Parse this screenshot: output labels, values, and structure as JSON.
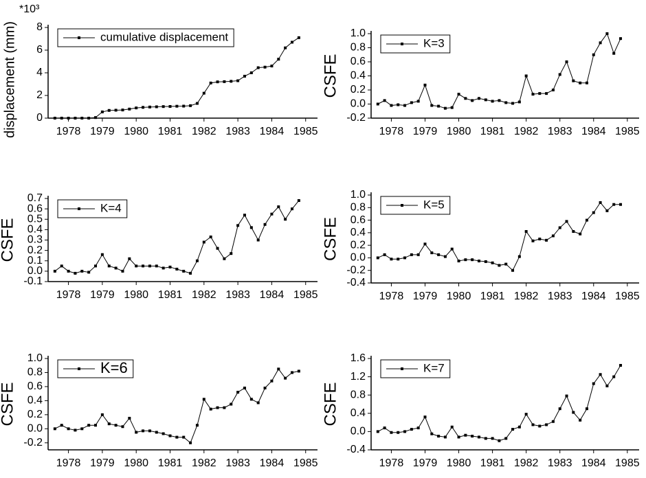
{
  "chart_data": [
    {
      "type": "line",
      "ylabel": "displacement (mm)",
      "y_multiplier": "*10³",
      "x": [
        1977.6,
        1977.8,
        1978.0,
        1978.2,
        1978.4,
        1978.6,
        1978.8,
        1979.0,
        1979.2,
        1979.4,
        1979.6,
        1979.8,
        1980.0,
        1980.2,
        1980.4,
        1980.6,
        1980.8,
        1981.0,
        1981.2,
        1981.4,
        1981.6,
        1981.8,
        1982.0,
        1982.2,
        1982.4,
        1982.6,
        1982.8,
        1983.0,
        1983.2,
        1983.4,
        1983.6,
        1983.8,
        1984.0,
        1984.2,
        1984.4,
        1984.6,
        1984.8
      ],
      "series": [
        {
          "name": "cumulative displacement",
          "color": "#000000",
          "values": [
            0,
            0,
            0,
            0,
            0,
            0,
            0.05,
            0.55,
            0.68,
            0.7,
            0.72,
            0.8,
            0.9,
            0.95,
            0.98,
            1.0,
            1.02,
            1.03,
            1.05,
            1.06,
            1.1,
            1.3,
            2.2,
            3.1,
            3.2,
            3.22,
            3.25,
            3.3,
            3.7,
            4.0,
            4.45,
            4.5,
            4.6,
            5.2,
            6.2,
            6.7,
            7.1
          ]
        }
      ],
      "xlim": [
        1977.4,
        1985.35
      ],
      "xticks": [
        1978,
        1979,
        1980,
        1981,
        1982,
        1983,
        1984,
        1985
      ],
      "ylim": [
        0,
        8
      ],
      "yticks": [
        0,
        2,
        4,
        6,
        8
      ],
      "legend": "upper left"
    },
    {
      "type": "line",
      "ylabel": "CSFE",
      "x": [
        1977.6,
        1977.8,
        1978.0,
        1978.2,
        1978.4,
        1978.6,
        1978.8,
        1979.0,
        1979.2,
        1979.4,
        1979.6,
        1979.8,
        1980.0,
        1980.2,
        1980.4,
        1980.6,
        1980.8,
        1981.0,
        1981.2,
        1981.4,
        1981.6,
        1981.8,
        1982.0,
        1982.2,
        1982.4,
        1982.6,
        1982.8,
        1983.0,
        1983.2,
        1983.4,
        1983.6,
        1983.8,
        1984.0,
        1984.2,
        1984.4,
        1984.6,
        1984.8
      ],
      "series": [
        {
          "name": "K=3",
          "color": "#000000",
          "values": [
            0,
            0.05,
            -0.02,
            -0.01,
            -0.02,
            0.02,
            0.04,
            0.27,
            -0.02,
            -0.03,
            -0.06,
            -0.05,
            0.14,
            0.08,
            0.05,
            0.08,
            0.06,
            0.04,
            0.05,
            0.02,
            0.01,
            0.03,
            0.4,
            0.14,
            0.15,
            0.15,
            0.2,
            0.42,
            0.6,
            0.33,
            0.3,
            0.3,
            0.7,
            0.87,
            1.0,
            0.72,
            0.93
          ]
        }
      ],
      "xlim": [
        1977.4,
        1985.35
      ],
      "xticks": [
        1978,
        1979,
        1980,
        1981,
        1982,
        1983,
        1984,
        1985
      ],
      "ylim": [
        -0.2,
        1.0
      ],
      "yticks": [
        -0.2,
        {
          "value": 0,
          "label": "0.0"
        },
        0.2,
        0.4,
        0.6,
        0.8,
        {
          "value": 1,
          "label": "1.0"
        }
      ],
      "legend": "upper left"
    },
    {
      "type": "line",
      "ylabel": "CSFE",
      "x": [
        1977.6,
        1977.8,
        1978.0,
        1978.2,
        1978.4,
        1978.6,
        1978.8,
        1979.0,
        1979.2,
        1979.4,
        1979.6,
        1979.8,
        1980.0,
        1980.2,
        1980.4,
        1980.6,
        1980.8,
        1981.0,
        1981.2,
        1981.4,
        1981.6,
        1981.8,
        1982.0,
        1982.2,
        1982.4,
        1982.6,
        1982.8,
        1983.0,
        1983.2,
        1983.4,
        1983.6,
        1983.8,
        1984.0,
        1984.2,
        1984.4,
        1984.6,
        1984.8
      ],
      "series": [
        {
          "name": "K=4",
          "color": "#000000",
          "values": [
            0,
            0.05,
            0,
            -0.02,
            0,
            -0.01,
            0.05,
            0.16,
            0.05,
            0.03,
            0,
            0.12,
            0.05,
            0.05,
            0.05,
            0.05,
            0.03,
            0.04,
            0.02,
            0,
            -0.02,
            0.1,
            0.28,
            0.33,
            0.22,
            0.12,
            0.17,
            0.44,
            0.54,
            0.42,
            0.3,
            0.45,
            0.55,
            0.62,
            0.5,
            0.6,
            0.68
          ]
        }
      ],
      "xlim": [
        1977.4,
        1985.35
      ],
      "xticks": [
        1978,
        1979,
        1980,
        1981,
        1982,
        1983,
        1984,
        1985
      ],
      "ylim": [
        -0.1,
        0.7
      ],
      "yticks": [
        -0.1,
        {
          "value": 0,
          "label": "0.0"
        },
        0.1,
        0.2,
        0.3,
        0.4,
        0.5,
        0.6,
        0.7
      ],
      "legend": "upper left"
    },
    {
      "type": "line",
      "ylabel": "CSFE",
      "x": [
        1977.6,
        1977.8,
        1978.0,
        1978.2,
        1978.4,
        1978.6,
        1978.8,
        1979.0,
        1979.2,
        1979.4,
        1979.6,
        1979.8,
        1980.0,
        1980.2,
        1980.4,
        1980.6,
        1980.8,
        1981.0,
        1981.2,
        1981.4,
        1981.6,
        1981.8,
        1982.0,
        1982.2,
        1982.4,
        1982.6,
        1982.8,
        1983.0,
        1983.2,
        1983.4,
        1983.6,
        1983.8,
        1984.0,
        1984.2,
        1984.4,
        1984.6,
        1984.8
      ],
      "series": [
        {
          "name": "K=5",
          "color": "#000000",
          "values": [
            0,
            0.05,
            -0.02,
            -0.02,
            0,
            0.05,
            0.05,
            0.22,
            0.08,
            0.05,
            0.02,
            0.14,
            -0.05,
            -0.03,
            -0.03,
            -0.05,
            -0.06,
            -0.08,
            -0.12,
            -0.1,
            -0.2,
            0.02,
            0.42,
            0.27,
            0.3,
            0.28,
            0.35,
            0.48,
            0.58,
            0.42,
            0.38,
            0.6,
            0.72,
            0.88,
            0.75,
            0.85,
            0.85
          ]
        }
      ],
      "xlim": [
        1977.4,
        1985.35
      ],
      "xticks": [
        1978,
        1979,
        1980,
        1981,
        1982,
        1983,
        1984,
        1985
      ],
      "ylim": [
        -0.4,
        1.0
      ],
      "yticks": [
        -0.4,
        -0.2,
        {
          "value": 0,
          "label": "0.0"
        },
        0.2,
        0.4,
        0.6,
        0.8,
        {
          "value": 1,
          "label": "1.0"
        }
      ],
      "legend": "upper left"
    },
    {
      "type": "line",
      "ylabel": "CSFE",
      "x": [
        1977.6,
        1977.8,
        1978.0,
        1978.2,
        1978.4,
        1978.6,
        1978.8,
        1979.0,
        1979.2,
        1979.4,
        1979.6,
        1979.8,
        1980.0,
        1980.2,
        1980.4,
        1980.6,
        1980.8,
        1981.0,
        1981.2,
        1981.4,
        1981.6,
        1981.8,
        1982.0,
        1982.2,
        1982.4,
        1982.6,
        1982.8,
        1983.0,
        1983.2,
        1983.4,
        1983.6,
        1983.8,
        1984.0,
        1984.2,
        1984.4,
        1984.6,
        1984.8
      ],
      "series": [
        {
          "name": "K=6",
          "color": "#000000",
          "values": [
            0,
            0.05,
            0,
            -0.02,
            0,
            0.05,
            0.05,
            0.2,
            0.07,
            0.05,
            0.03,
            0.15,
            -0.05,
            -0.03,
            -0.03,
            -0.05,
            -0.07,
            -0.1,
            -0.12,
            -0.12,
            -0.2,
            0.05,
            0.42,
            0.28,
            0.3,
            0.3,
            0.35,
            0.52,
            0.58,
            0.42,
            0.37,
            0.58,
            0.68,
            0.85,
            0.72,
            0.8,
            0.82
          ]
        }
      ],
      "xlim": [
        1977.4,
        1985.35
      ],
      "xticks": [
        1978,
        1979,
        1980,
        1981,
        1982,
        1983,
        1984,
        1985
      ],
      "ylim": [
        -0.3,
        1.0
      ],
      "yticks": [
        -0.2,
        {
          "value": 0,
          "label": "0.0"
        },
        0.2,
        0.4,
        0.6,
        0.8,
        {
          "value": 1,
          "label": "1.0"
        }
      ],
      "legend": "upper left"
    },
    {
      "type": "line",
      "ylabel": "CSFE",
      "x": [
        1977.6,
        1977.8,
        1978.0,
        1978.2,
        1978.4,
        1978.6,
        1978.8,
        1979.0,
        1979.2,
        1979.4,
        1979.6,
        1979.8,
        1980.0,
        1980.2,
        1980.4,
        1980.6,
        1980.8,
        1981.0,
        1981.2,
        1981.4,
        1981.6,
        1981.8,
        1982.0,
        1982.2,
        1982.4,
        1982.6,
        1982.8,
        1983.0,
        1983.2,
        1983.4,
        1983.6,
        1983.8,
        1984.0,
        1984.2,
        1984.4,
        1984.6,
        1984.8
      ],
      "series": [
        {
          "name": "K=7",
          "color": "#000000",
          "values": [
            0,
            0.08,
            -0.02,
            -0.02,
            0,
            0.05,
            0.08,
            0.32,
            -0.05,
            -0.1,
            -0.12,
            0.1,
            -0.12,
            -0.08,
            -0.1,
            -0.12,
            -0.15,
            -0.15,
            -0.2,
            -0.15,
            0.05,
            0.1,
            0.38,
            0.15,
            0.12,
            0.15,
            0.22,
            0.5,
            0.78,
            0.42,
            0.25,
            0.5,
            1.05,
            1.25,
            1.0,
            1.2,
            1.45
          ]
        }
      ],
      "xlim": [
        1977.4,
        1985.35
      ],
      "xticks": [
        1978,
        1979,
        1980,
        1981,
        1982,
        1983,
        1984,
        1985
      ],
      "ylim": [
        -0.4,
        1.6
      ],
      "yticks": [
        -0.4,
        {
          "value": 0,
          "label": "0.0"
        },
        0.4,
        0.8,
        1.2,
        1.6
      ],
      "legend": "upper left"
    }
  ]
}
